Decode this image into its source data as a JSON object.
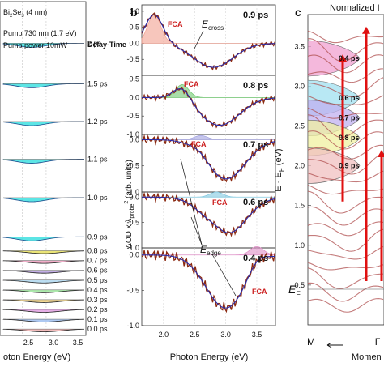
{
  "figure": {
    "panel_a": {
      "sample": "Bi",
      "sample_sub1": "2",
      "sample_mid": "Se",
      "sample_sub2": "3",
      "sample_tail": " (4 nm)",
      "pump": "Pump 730 nm (1.7 eV)",
      "pump_power": "Pump power 10mW",
      "delay_header": "Delay-Time",
      "xlabel": "oton Energy (eV)",
      "xticks": [
        "2.5",
        "3.0",
        "3.5"
      ]
    },
    "panel_b": {
      "letter": "b",
      "ylabel": "ΔOD x λ",
      "ylabel_sub": "probe",
      "ylabel_sup": "2",
      "ylabel_tail": " (arb. units)",
      "xlabel": "Photon Energy (eV)",
      "xticks": [
        "2.0",
        "2.5",
        "3.0",
        "3.5"
      ],
      "fca": "FCA",
      "e_cross": "E",
      "e_cross_sub": "cross",
      "e_edge": "E",
      "e_edge_sub": "edge"
    },
    "panel_c": {
      "letter": "c",
      "header": "Normalized I",
      "ylabel": "E - E",
      "ylabel_sub": "F",
      "ylabel_tail": " (eV)",
      "ef_label": "E",
      "ef_sub": "F",
      "k_left": "M",
      "k_mid": "Γ",
      "xlabel": "Momen",
      "yticks": [
        "0.5",
        "1.0",
        "1.5",
        "2.0",
        "2.5",
        "3.0",
        "3.5"
      ],
      "delay_labels": [
        "0.4 ps",
        "0.6 ps",
        "0.7 ps",
        "0.8 ps",
        "0.9 ps"
      ]
    }
  },
  "chart_data": [
    {
      "type": "line",
      "panel": "a",
      "xlabel": "oton Energy (eV)",
      "xlim": [
        2.1,
        3.8
      ],
      "delay_header": "Delay-Time",
      "series": [
        {
          "name": "2 ps"
        },
        {
          "name": "1.5 ps"
        },
        {
          "name": "1.2 ps"
        },
        {
          "name": "1.1 ps"
        },
        {
          "name": "1.0 ps"
        },
        {
          "name": "0.9 ps"
        },
        {
          "name": "0.8 ps"
        },
        {
          "name": "0.7 ps"
        },
        {
          "name": "0.6 ps"
        },
        {
          "name": "0.5 ps"
        },
        {
          "name": "0.4 ps"
        },
        {
          "name": "0.3 ps"
        },
        {
          "name": "0.2 ps"
        },
        {
          "name": "0.1 ps"
        },
        {
          "name": "0.0 ps"
        }
      ],
      "row_colors": [
        "#40e0e0",
        "#40e0e0",
        "#40e0e0",
        "#40e0e0",
        "#40e0e0",
        "#40e0e0",
        "#e8e060",
        "#f0a0c0",
        "#b8a0e0",
        "#b0d8f0",
        "#a0e8a0",
        "#f0d080",
        "#e0a0e0",
        "#a0c0f0",
        "#f0b0b0"
      ],
      "grid": true
    },
    {
      "type": "line",
      "panel": "b",
      "xlabel": "Photon Energy (eV)",
      "ylabel": "ΔOD x λprobe2 (arb. units)",
      "xlim": [
        1.65,
        3.8
      ],
      "xticks": [
        2.0,
        2.5,
        3.0,
        3.5
      ],
      "subplots": [
        {
          "delay": "0.9 ps",
          "ylim": [
            -1.0,
            1.2
          ],
          "yticks": [
            -0.5,
            0.0,
            0.5,
            1.0
          ]
        },
        {
          "delay": "0.8 ps",
          "ylim": [
            -1.0,
            0.6
          ],
          "yticks": [
            -1.0,
            -0.5,
            0.0,
            0.5
          ]
        },
        {
          "delay": "0.7 ps",
          "ylim": [
            -1.0,
            0.1
          ],
          "yticks": [
            -1.0,
            -0.5,
            0.0
          ]
        },
        {
          "delay": "0.6 ps",
          "ylim": [
            -1.0,
            0.1
          ],
          "yticks": [
            -1.0,
            -0.5,
            0.0
          ]
        },
        {
          "delay": "0.4 ps",
          "ylim": [
            -1.0,
            0.1
          ],
          "yticks": [
            -1.0,
            -0.5,
            0.0
          ]
        }
      ],
      "annotations": [
        "FCA",
        "Ecross",
        "Eedge"
      ],
      "colors": {
        "data": "#8b2a12",
        "fit": "#2b2ba8",
        "fca": "#cc1e1e"
      }
    },
    {
      "type": "line",
      "panel": "c",
      "header": "Normalized I",
      "ylabel": "E - EF (eV)",
      "xlabel": "Momen",
      "ylim": [
        0,
        3.9
      ],
      "yticks": [
        0.5,
        1.0,
        1.5,
        2.0,
        2.5,
        3.0,
        3.5
      ],
      "k_labels": [
        "M",
        "Γ"
      ],
      "delay_labels": [
        "0.4 ps",
        "0.6 ps",
        "0.7 ps",
        "0.8 ps",
        "0.9 ps"
      ],
      "colors": {
        "bands": "#b05050",
        "arrows": "#e01010"
      }
    }
  ]
}
